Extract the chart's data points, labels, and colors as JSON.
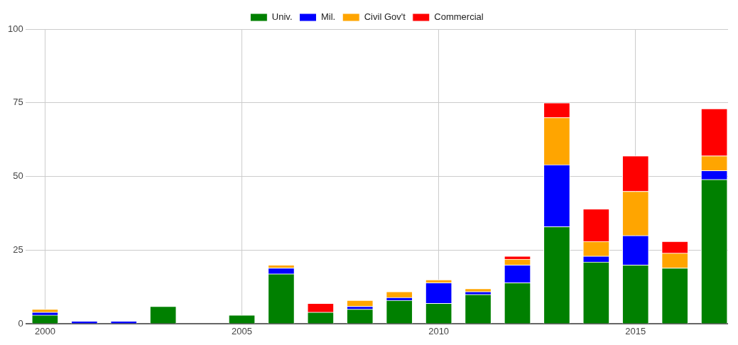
{
  "chart_data": {
    "type": "bar",
    "stacked": true,
    "x": [
      2000,
      2001,
      2002,
      2003,
      2004,
      2005,
      2006,
      2007,
      2008,
      2009,
      2010,
      2011,
      2012,
      2013,
      2014,
      2015,
      2016,
      2017
    ],
    "series": [
      {
        "name": "Univ.",
        "color": "#008000",
        "values": [
          3,
          0,
          0,
          6,
          0,
          3,
          17,
          4,
          5,
          8,
          7,
          10,
          14,
          33,
          21,
          20,
          19,
          49
        ]
      },
      {
        "name": "Mil.",
        "color": "#0000ff",
        "values": [
          1,
          1,
          1,
          0,
          0,
          0,
          2,
          0,
          1,
          1,
          7,
          1,
          6,
          21,
          2,
          10,
          0,
          3
        ]
      },
      {
        "name": "Civil Gov't",
        "color": "#ffa500",
        "values": [
          1,
          0,
          0,
          0,
          0,
          0,
          1,
          0,
          2,
          2,
          1,
          1,
          2,
          16,
          5,
          15,
          5,
          5
        ]
      },
      {
        "name": "Commercial",
        "color": "#ff0000",
        "values": [
          0,
          0,
          0,
          0,
          0,
          0,
          0,
          3,
          0,
          0,
          0,
          0,
          1,
          5,
          11,
          12,
          4,
          16
        ]
      }
    ],
    "xlim": [
      1999.5,
      2017.35
    ],
    "xticks": [
      2000,
      2005,
      2010,
      2015
    ],
    "ylim": [
      0,
      100
    ],
    "yticks": [
      0,
      25,
      50,
      75,
      100
    ],
    "grid": true,
    "legend": "top"
  }
}
